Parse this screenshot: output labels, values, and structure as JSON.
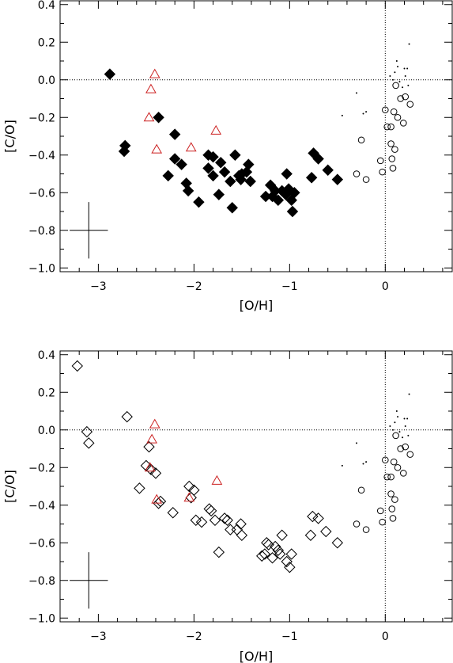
{
  "chart_data": [
    {
      "type": "scatter",
      "xlabel": "[O/H]",
      "ylabel": "[C/O]",
      "xlim": [
        -3.4,
        0.7
      ],
      "ylim": [
        -1.02,
        0.42
      ],
      "xticks": [
        -3,
        -2,
        -1,
        0
      ],
      "yticks": [
        -1.0,
        -0.8,
        -0.6,
        -0.4,
        -0.2,
        0.0,
        0.2,
        0.4
      ],
      "xtick_labels": [
        "−3",
        "−2",
        "−1",
        "0"
      ],
      "ytick_labels": [
        "−1.0",
        "−0.8",
        "−0.6",
        "−0.4",
        "−0.2",
        "0.0",
        "0.2",
        "0.4"
      ],
      "reference_lines": {
        "x": 0,
        "y": 0,
        "style": "dotted"
      },
      "error_bar": {
        "x": -3.1,
        "y": -0.8,
        "xerr": 0.2,
        "yerr": 0.15
      },
      "series": [
        {
          "marker": "filled-diamond",
          "color": "#000000",
          "points": [
            [
              -2.88,
              0.03
            ],
            [
              -2.72,
              -0.35
            ],
            [
              -2.73,
              -0.38
            ],
            [
              -2.37,
              -0.2
            ],
            [
              -2.27,
              -0.51
            ],
            [
              -2.2,
              -0.29
            ],
            [
              -2.2,
              -0.42
            ],
            [
              -2.13,
              -0.45
            ],
            [
              -2.08,
              -0.55
            ],
            [
              -2.06,
              -0.59
            ],
            [
              -1.95,
              -0.65
            ],
            [
              -1.85,
              -0.4
            ],
            [
              -1.85,
              -0.47
            ],
            [
              -1.8,
              -0.41
            ],
            [
              -1.8,
              -0.51
            ],
            [
              -1.74,
              -0.61
            ],
            [
              -1.72,
              -0.44
            ],
            [
              -1.68,
              -0.49
            ],
            [
              -1.62,
              -0.54
            ],
            [
              -1.6,
              -0.68
            ],
            [
              -1.57,
              -0.4
            ],
            [
              -1.53,
              -0.51
            ],
            [
              -1.51,
              -0.53
            ],
            [
              -1.5,
              -0.5
            ],
            [
              -1.45,
              -0.49
            ],
            [
              -1.43,
              -0.45
            ],
            [
              -1.41,
              -0.54
            ],
            [
              -1.25,
              -0.62
            ],
            [
              -1.2,
              -0.56
            ],
            [
              -1.18,
              -0.62
            ],
            [
              -1.15,
              -0.59
            ],
            [
              -1.12,
              -0.64
            ],
            [
              -1.08,
              -0.59
            ],
            [
              -1.04,
              -0.61
            ],
            [
              -1.03,
              -0.5
            ],
            [
              -1.01,
              -0.58
            ],
            [
              -0.98,
              -0.64
            ],
            [
              -0.97,
              -0.7
            ],
            [
              -0.95,
              -0.6
            ],
            [
              -0.77,
              -0.52
            ],
            [
              -0.75,
              -0.39
            ],
            [
              -0.7,
              -0.42
            ],
            [
              -0.6,
              -0.48
            ],
            [
              -0.5,
              -0.53
            ]
          ]
        },
        {
          "marker": "open-triangle",
          "color": "#cc2222",
          "points": [
            [
              -2.41,
              0.03
            ],
            [
              -2.45,
              -0.05
            ],
            [
              -2.47,
              -0.2
            ],
            [
              -2.39,
              -0.37
            ],
            [
              -2.03,
              -0.36
            ],
            [
              -1.77,
              -0.27
            ]
          ]
        },
        {
          "marker": "open-circle",
          "color": "#000000",
          "points": [
            [
              -0.25,
              -0.32
            ],
            [
              -0.2,
              -0.53
            ],
            [
              -0.05,
              -0.43
            ],
            [
              -0.03,
              -0.49
            ],
            [
              0.0,
              -0.16
            ],
            [
              0.02,
              -0.25
            ],
            [
              0.06,
              -0.25
            ],
            [
              0.06,
              -0.34
            ],
            [
              0.07,
              -0.42
            ],
            [
              0.08,
              -0.47
            ],
            [
              0.09,
              -0.17
            ],
            [
              0.1,
              -0.37
            ],
            [
              0.11,
              -0.03
            ],
            [
              0.13,
              -0.2
            ],
            [
              0.16,
              -0.1
            ],
            [
              0.19,
              -0.23
            ],
            [
              0.21,
              -0.09
            ],
            [
              0.26,
              -0.13
            ],
            [
              -0.3,
              -0.5
            ]
          ]
        },
        {
          "marker": "dot",
          "color": "#000000",
          "points": [
            [
              -0.45,
              -0.19
            ],
            [
              -0.3,
              -0.07
            ],
            [
              -0.23,
              -0.18
            ],
            [
              -0.2,
              -0.17
            ],
            [
              0.1,
              0.04
            ],
            [
              0.12,
              0.1
            ],
            [
              0.13,
              0.07
            ],
            [
              0.15,
              -0.01
            ],
            [
              0.2,
              0.06
            ],
            [
              0.21,
              0.02
            ],
            [
              0.23,
              0.06
            ],
            [
              0.25,
              0.19
            ],
            [
              0.24,
              -0.03
            ],
            [
              0.18,
              -0.04
            ],
            [
              0.08,
              0.0
            ],
            [
              0.05,
              0.02
            ]
          ]
        }
      ]
    },
    {
      "type": "scatter",
      "xlabel": "[O/H]",
      "ylabel": "[C/O]",
      "xlim": [
        -3.4,
        0.7
      ],
      "ylim": [
        -1.02,
        0.42
      ],
      "xticks": [
        -3,
        -2,
        -1,
        0
      ],
      "yticks": [
        -1.0,
        -0.8,
        -0.6,
        -0.4,
        -0.2,
        0.0,
        0.2,
        0.4
      ],
      "xtick_labels": [
        "−3",
        "−2",
        "−1",
        "0"
      ],
      "ytick_labels": [
        "−1.0",
        "−0.8",
        "−0.6",
        "−0.4",
        "−0.2",
        "0.0",
        "0.2",
        "0.4"
      ],
      "reference_lines": {
        "x": 0,
        "y": 0,
        "style": "dotted"
      },
      "error_bar": {
        "x": -3.1,
        "y": -0.8,
        "xerr": 0.2,
        "yerr": 0.15
      },
      "series": [
        {
          "marker": "open-diamond",
          "color": "#000000",
          "points": [
            [
              -3.22,
              0.34
            ],
            [
              -3.12,
              -0.01
            ],
            [
              -3.1,
              -0.07
            ],
            [
              -2.7,
              0.07
            ],
            [
              -2.57,
              -0.31
            ],
            [
              -2.5,
              -0.19
            ],
            [
              -2.47,
              -0.09
            ],
            [
              -2.45,
              -0.21
            ],
            [
              -2.4,
              -0.23
            ],
            [
              -2.37,
              -0.39
            ],
            [
              -2.35,
              -0.38
            ],
            [
              -2.22,
              -0.44
            ],
            [
              -2.05,
              -0.3
            ],
            [
              -2.03,
              -0.36
            ],
            [
              -2.0,
              -0.32
            ],
            [
              -1.98,
              -0.48
            ],
            [
              -1.92,
              -0.49
            ],
            [
              -1.84,
              -0.42
            ],
            [
              -1.82,
              -0.43
            ],
            [
              -1.78,
              -0.48
            ],
            [
              -1.74,
              -0.65
            ],
            [
              -1.68,
              -0.47
            ],
            [
              -1.65,
              -0.48
            ],
            [
              -1.62,
              -0.53
            ],
            [
              -1.55,
              -0.53
            ],
            [
              -1.51,
              -0.5
            ],
            [
              -1.5,
              -0.56
            ],
            [
              -1.29,
              -0.67
            ],
            [
              -1.26,
              -0.66
            ],
            [
              -1.24,
              -0.6
            ],
            [
              -1.22,
              -0.61
            ],
            [
              -1.18,
              -0.68
            ],
            [
              -1.15,
              -0.62
            ],
            [
              -1.12,
              -0.64
            ],
            [
              -1.1,
              -0.66
            ],
            [
              -1.08,
              -0.56
            ],
            [
              -1.03,
              -0.7
            ],
            [
              -1.0,
              -0.73
            ],
            [
              -0.98,
              -0.66
            ],
            [
              -0.78,
              -0.56
            ],
            [
              -0.76,
              -0.46
            ],
            [
              -0.7,
              -0.47
            ],
            [
              -0.62,
              -0.54
            ],
            [
              -0.5,
              -0.6
            ]
          ]
        },
        {
          "marker": "open-triangle",
          "color": "#cc2222",
          "points": [
            [
              -2.41,
              0.03
            ],
            [
              -2.44,
              -0.05
            ],
            [
              -2.46,
              -0.2
            ],
            [
              -2.39,
              -0.37
            ],
            [
              -2.05,
              -0.36
            ],
            [
              -1.76,
              -0.27
            ]
          ]
        },
        {
          "marker": "open-circle",
          "color": "#000000",
          "points": [
            [
              -0.25,
              -0.32
            ],
            [
              -0.2,
              -0.53
            ],
            [
              -0.05,
              -0.43
            ],
            [
              -0.03,
              -0.49
            ],
            [
              0.0,
              -0.16
            ],
            [
              0.02,
              -0.25
            ],
            [
              0.06,
              -0.25
            ],
            [
              0.06,
              -0.34
            ],
            [
              0.07,
              -0.42
            ],
            [
              0.08,
              -0.47
            ],
            [
              0.09,
              -0.17
            ],
            [
              0.1,
              -0.37
            ],
            [
              0.11,
              -0.03
            ],
            [
              0.13,
              -0.2
            ],
            [
              0.16,
              -0.1
            ],
            [
              0.19,
              -0.23
            ],
            [
              0.21,
              -0.09
            ],
            [
              0.26,
              -0.13
            ],
            [
              -0.3,
              -0.5
            ]
          ]
        },
        {
          "marker": "dot",
          "color": "#000000",
          "points": [
            [
              -0.45,
              -0.19
            ],
            [
              -0.3,
              -0.07
            ],
            [
              -0.23,
              -0.18
            ],
            [
              -0.2,
              -0.17
            ],
            [
              0.1,
              0.04
            ],
            [
              0.12,
              0.1
            ],
            [
              0.13,
              0.07
            ],
            [
              0.15,
              -0.01
            ],
            [
              0.2,
              0.06
            ],
            [
              0.21,
              0.02
            ],
            [
              0.23,
              0.06
            ],
            [
              0.25,
              0.19
            ],
            [
              0.24,
              -0.03
            ],
            [
              0.18,
              -0.04
            ],
            [
              0.08,
              0.0
            ],
            [
              0.05,
              0.02
            ]
          ]
        }
      ]
    }
  ]
}
